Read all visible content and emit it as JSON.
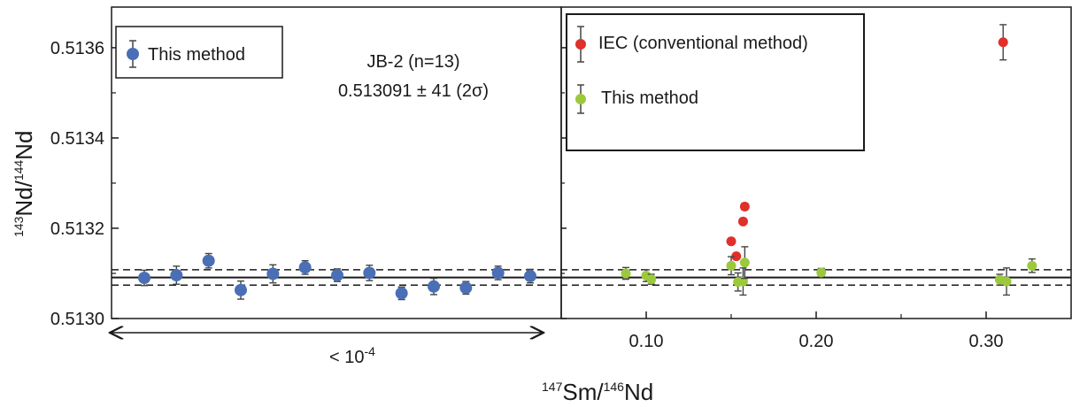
{
  "chart_data": {
    "type": "scatter",
    "xlabel": {
      "pre_sup": "147",
      "mid": "Sm/",
      "sup": "146",
      "post": "Nd"
    },
    "ylabel": {
      "pre_sup": "143",
      "mid": "Nd/",
      "sup": "144",
      "post": "Nd"
    },
    "ylim": [
      0.513,
      0.51369
    ],
    "y_ticks": [
      "0.5130",
      "0.5132",
      "0.5134",
      "0.5136"
    ],
    "y_tick_values": [
      0.513,
      0.5132,
      0.5134,
      0.5136
    ],
    "reference_line": {
      "mean": 0.513091,
      "upper": 0.513108,
      "lower": 0.513074
    },
    "left_panel": {
      "legend": "This method",
      "annotation_line1": "JB-2 (n=13)",
      "annotation_line2": "0.513091 ± 41 (2σ)",
      "range_label": "< 10",
      "range_sup": "-4",
      "color": "#4a6fb5",
      "points": [
        {
          "y": 0.51309,
          "err": 1.7e-05
        },
        {
          "y": 0.513096,
          "err": 2e-05
        },
        {
          "y": 0.513128,
          "err": 1.6e-05
        },
        {
          "y": 0.513063,
          "err": 2e-05
        },
        {
          "y": 0.513099,
          "err": 2e-05
        },
        {
          "y": 0.513113,
          "err": 1.5e-05
        },
        {
          "y": 0.513096,
          "err": 1.4e-05
        },
        {
          "y": 0.513101,
          "err": 1.7e-05
        },
        {
          "y": 0.513056,
          "err": 1.4e-05
        },
        {
          "y": 0.513071,
          "err": 1.8e-05
        },
        {
          "y": 0.513068,
          "err": 1.4e-05
        },
        {
          "y": 0.513101,
          "err": 1.5e-05
        },
        {
          "y": 0.513094,
          "err": 1.5e-05
        }
      ]
    },
    "right_panel": {
      "xlim": [
        0.05,
        0.35
      ],
      "x_ticks": [
        "0.10",
        "0.20",
        "0.30"
      ],
      "x_tick_values": [
        0.1,
        0.2,
        0.3
      ],
      "series": [
        {
          "name": "IEC (conventional method)",
          "color": "#e0302a",
          "points": [
            {
              "x": 0.15,
              "y": 0.513171,
              "err": 6e-06
            },
            {
              "x": 0.153,
              "y": 0.513138,
              "err": 6e-06
            },
            {
              "x": 0.157,
              "y": 0.513215,
              "err": 6e-06
            },
            {
              "x": 0.158,
              "y": 0.513248,
              "err": 7e-06
            },
            {
              "x": 0.31,
              "y": 0.513612,
              "err": 3.9e-05
            }
          ]
        },
        {
          "name": "This method",
          "color": "#9cc93c",
          "points": [
            {
              "x": 0.088,
              "y": 0.5131,
              "err": 1.3e-05
            },
            {
              "x": 0.1,
              "y": 0.513095,
              "err": 1.3e-05
            },
            {
              "x": 0.103,
              "y": 0.513087,
              "err": 1.1e-05
            },
            {
              "x": 0.15,
              "y": 0.513117,
              "err": 2e-05
            },
            {
              "x": 0.154,
              "y": 0.513081,
              "err": 2e-05
            },
            {
              "x": 0.157,
              "y": 0.513082,
              "err": 3e-05
            },
            {
              "x": 0.158,
              "y": 0.513124,
              "err": 3.5e-05
            },
            {
              "x": 0.203,
              "y": 0.513102,
              "err": 9e-06
            },
            {
              "x": 0.308,
              "y": 0.513086,
              "err": 1.2e-05
            },
            {
              "x": 0.312,
              "y": 0.513082,
              "err": 3e-05
            },
            {
              "x": 0.327,
              "y": 0.513117,
              "err": 1.5e-05
            }
          ]
        }
      ]
    }
  }
}
